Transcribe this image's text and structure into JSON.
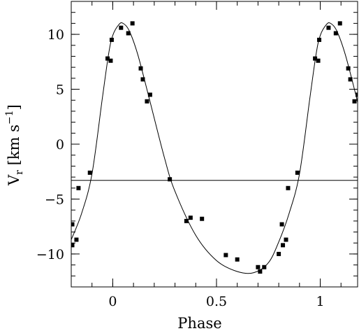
{
  "chart_data": {
    "type": "scatter",
    "title": "",
    "xlabel": "Phase",
    "ylabel": {
      "base": "V",
      "sub": "r",
      "open_bracket": "[",
      "unit_km": "km",
      "unit_s": "s",
      "exponent": "−1",
      "close_bracket": "]"
    },
    "xlim": [
      -0.2,
      1.18
    ],
    "ylim": [
      -13,
      13
    ],
    "x_ticks": [
      {
        "value": 0,
        "label": "0"
      },
      {
        "value": 0.5,
        "label": "0.5"
      },
      {
        "value": 1,
        "label": "1"
      }
    ],
    "y_ticks": [
      {
        "value": 10,
        "label": "10"
      },
      {
        "value": 5,
        "label": "5"
      },
      {
        "value": 0,
        "label": "0"
      },
      {
        "value": -5,
        "label": "−5"
      },
      {
        "value": -10,
        "label": "−10"
      }
    ],
    "x_minor_step": 0.1,
    "y_minor_step": 1,
    "grid": false,
    "legend": "none",
    "systemic_velocity": -3.3,
    "points": [
      {
        "x": -0.195,
        "y": -7.3
      },
      {
        "x": -0.195,
        "y": -9.2
      },
      {
        "x": -0.175,
        "y": -8.7
      },
      {
        "x": -0.165,
        "y": -4.0
      },
      {
        "x": -0.11,
        "y": -2.6
      },
      {
        "x": -0.025,
        "y": 7.8
      },
      {
        "x": -0.01,
        "y": 7.6
      },
      {
        "x": -0.005,
        "y": 9.5
      },
      {
        "x": 0.04,
        "y": 10.6
      },
      {
        "x": 0.075,
        "y": 10.1
      },
      {
        "x": 0.095,
        "y": 11.0
      },
      {
        "x": 0.135,
        "y": 6.9
      },
      {
        "x": 0.145,
        "y": 5.9
      },
      {
        "x": 0.165,
        "y": 3.9
      },
      {
        "x": 0.18,
        "y": 4.5
      },
      {
        "x": 0.275,
        "y": -3.2
      },
      {
        "x": 0.355,
        "y": -7.0
      },
      {
        "x": 0.375,
        "y": -6.7
      },
      {
        "x": 0.43,
        "y": -6.8
      },
      {
        "x": 0.545,
        "y": -10.1
      },
      {
        "x": 0.6,
        "y": -10.5
      },
      {
        "x": 0.7,
        "y": -11.2
      },
      {
        "x": 0.71,
        "y": -11.6
      },
      {
        "x": 0.73,
        "y": -11.2
      },
      {
        "x": 0.8,
        "y": -10.0
      },
      {
        "x": 0.815,
        "y": -7.3
      },
      {
        "x": 0.82,
        "y": -9.2
      },
      {
        "x": 0.835,
        "y": -8.7
      },
      {
        "x": 0.845,
        "y": -4.0
      },
      {
        "x": 0.89,
        "y": -2.6
      },
      {
        "x": 0.975,
        "y": 7.8
      },
      {
        "x": 0.99,
        "y": 7.6
      },
      {
        "x": 0.995,
        "y": 9.5
      },
      {
        "x": 1.04,
        "y": 10.6
      },
      {
        "x": 1.075,
        "y": 10.1
      },
      {
        "x": 1.095,
        "y": 11.0
      },
      {
        "x": 1.135,
        "y": 6.9
      },
      {
        "x": 1.145,
        "y": 5.9
      },
      {
        "x": 1.165,
        "y": 3.9
      },
      {
        "x": 1.18,
        "y": 4.5
      }
    ],
    "fit_curve": [
      {
        "x": -0.2,
        "y": -8.7
      },
      {
        "x": -0.15,
        "y": -6.3
      },
      {
        "x": -0.1,
        "y": -2.7
      },
      {
        "x": -0.05,
        "y": 4.2
      },
      {
        "x": -0.02,
        "y": 8.2
      },
      {
        "x": 0.0,
        "y": 9.9
      },
      {
        "x": 0.03,
        "y": 10.9
      },
      {
        "x": 0.05,
        "y": 11.0
      },
      {
        "x": 0.08,
        "y": 10.3
      },
      {
        "x": 0.12,
        "y": 8.2
      },
      {
        "x": 0.17,
        "y": 4.6
      },
      {
        "x": 0.25,
        "y": -1.3
      },
      {
        "x": 0.3,
        "y": -4.3
      },
      {
        "x": 0.4,
        "y": -8.3
      },
      {
        "x": 0.5,
        "y": -10.6
      },
      {
        "x": 0.6,
        "y": -11.6
      },
      {
        "x": 0.68,
        "y": -11.7
      },
      {
        "x": 0.75,
        "y": -10.8
      },
      {
        "x": 0.8,
        "y": -8.9
      },
      {
        "x": 0.85,
        "y": -6.3
      },
      {
        "x": 0.9,
        "y": -2.7
      },
      {
        "x": 0.95,
        "y": 4.2
      },
      {
        "x": 0.98,
        "y": 8.2
      },
      {
        "x": 1.0,
        "y": 9.9
      },
      {
        "x": 1.03,
        "y": 10.9
      },
      {
        "x": 1.05,
        "y": 11.0
      },
      {
        "x": 1.08,
        "y": 10.3
      },
      {
        "x": 1.12,
        "y": 8.2
      },
      {
        "x": 1.17,
        "y": 4.6
      },
      {
        "x": 1.18,
        "y": 3.8
      }
    ],
    "colors": {
      "ink": "#000000",
      "background": "#ffffff"
    }
  }
}
